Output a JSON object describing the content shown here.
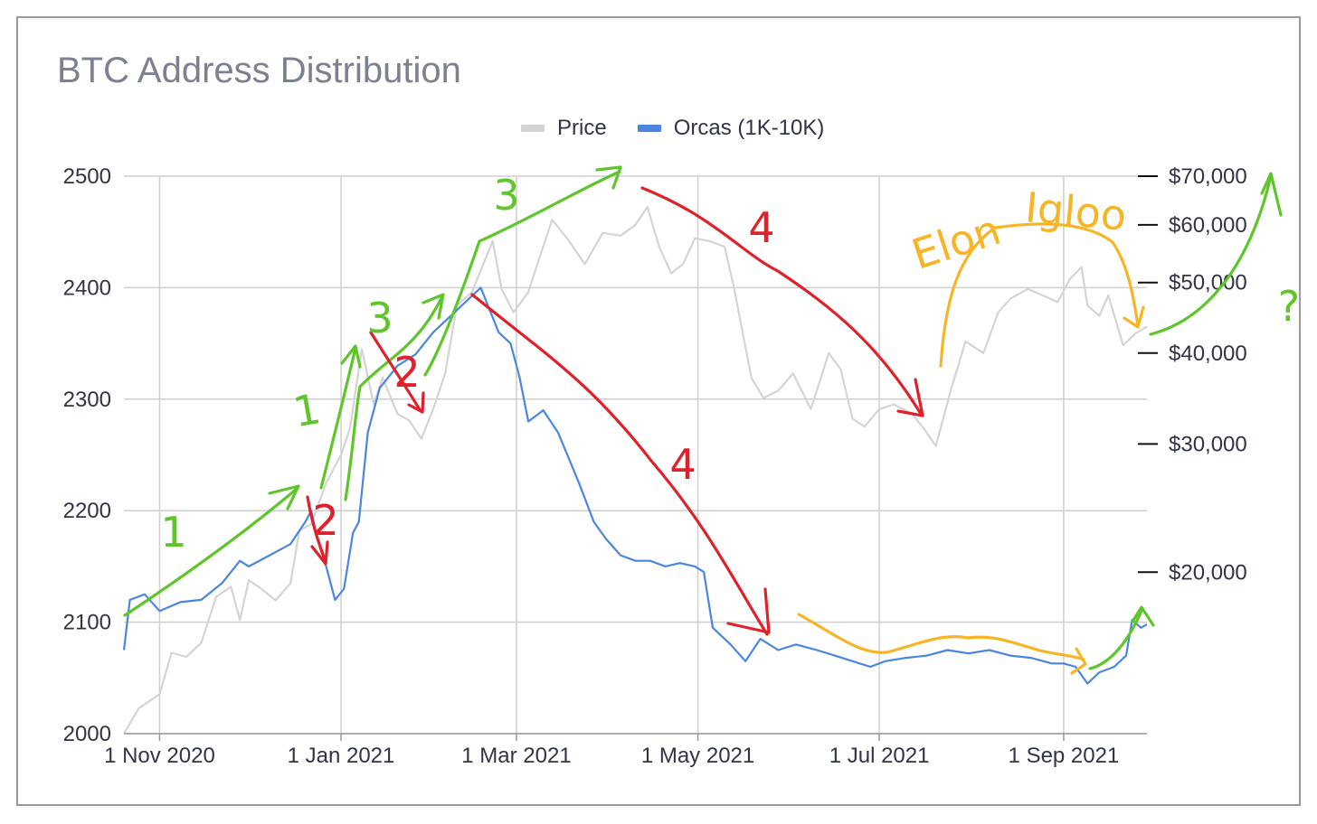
{
  "chart_data": {
    "type": "line",
    "title": "BTC Address Distribution",
    "legend": {
      "placement": "top-center",
      "entries": [
        "Price",
        "Orcas (1K-10K)"
      ]
    },
    "colors": {
      "price": "#d4d4d4",
      "orcas": "#4a86e0",
      "green": "#5ec52a",
      "red": "#e0202a",
      "yellow": "#f7b525"
    },
    "x_axis": {
      "type": "date",
      "range": [
        "2020-10-20",
        "2021-09-29"
      ],
      "tick_labels": [
        "1 Nov 2020",
        "1 Jan 2021",
        "1 Mar 2021",
        "1 May 2021",
        "1 Jul 2021",
        "1 Sep 2021"
      ],
      "tick_dates": [
        "2020-11-01",
        "2021-01-01",
        "2021-03-01",
        "2021-05-01",
        "2021-07-01",
        "2021-09-01"
      ]
    },
    "y_left": {
      "range": [
        2000,
        2500
      ],
      "tick_labels": [
        "2000",
        "2100",
        "2200",
        "2300",
        "2400",
        "2500"
      ],
      "tick_values": [
        2000,
        2100,
        2200,
        2300,
        2400,
        2500
      ]
    },
    "y_right": {
      "scale": "log",
      "range": [
        12000,
        70000
      ],
      "tick_labels": [
        "$70,000",
        "$60,000",
        "$50,000",
        "$40,000",
        "$30,000",
        "$20,000"
      ],
      "tick_values": [
        70000,
        60000,
        50000,
        40000,
        30000,
        20000
      ]
    },
    "grid": true,
    "series": [
      {
        "name": "Price",
        "axis": "right",
        "points": [
          [
            "2020-10-20",
            12000
          ],
          [
            "2020-10-25",
            13000
          ],
          [
            "2020-11-01",
            13600
          ],
          [
            "2020-11-05",
            15500
          ],
          [
            "2020-11-10",
            15300
          ],
          [
            "2020-11-15",
            16000
          ],
          [
            "2020-11-20",
            18500
          ],
          [
            "2020-11-25",
            19100
          ],
          [
            "2020-11-28",
            17200
          ],
          [
            "2020-12-01",
            19500
          ],
          [
            "2020-12-05",
            19000
          ],
          [
            "2020-12-10",
            18300
          ],
          [
            "2020-12-15",
            19300
          ],
          [
            "2020-12-18",
            22800
          ],
          [
            "2020-12-22",
            23300
          ],
          [
            "2020-12-27",
            26500
          ],
          [
            "2021-01-01",
            29000
          ],
          [
            "2021-01-04",
            31500
          ],
          [
            "2021-01-08",
            40500
          ],
          [
            "2021-01-12",
            34000
          ],
          [
            "2021-01-15",
            37000
          ],
          [
            "2021-01-20",
            33000
          ],
          [
            "2021-01-24",
            32300
          ],
          [
            "2021-01-28",
            30500
          ],
          [
            "2021-02-01",
            33500
          ],
          [
            "2021-02-05",
            37500
          ],
          [
            "2021-02-09",
            46500
          ],
          [
            "2021-02-14",
            48500
          ],
          [
            "2021-02-21",
            57000
          ],
          [
            "2021-02-24",
            49000
          ],
          [
            "2021-02-28",
            45500
          ],
          [
            "2021-03-05",
            48500
          ],
          [
            "2021-03-09",
            54500
          ],
          [
            "2021-03-13",
            61000
          ],
          [
            "2021-03-18",
            57500
          ],
          [
            "2021-03-24",
            53000
          ],
          [
            "2021-03-30",
            58500
          ],
          [
            "2021-04-05",
            58000
          ],
          [
            "2021-04-10",
            60000
          ],
          [
            "2021-04-14",
            63500
          ],
          [
            "2021-04-18",
            56000
          ],
          [
            "2021-04-22",
            51500
          ],
          [
            "2021-04-26",
            53000
          ],
          [
            "2021-04-30",
            57500
          ],
          [
            "2021-05-05",
            57000
          ],
          [
            "2021-05-10",
            56000
          ],
          [
            "2021-05-13",
            49500
          ],
          [
            "2021-05-19",
            37000
          ],
          [
            "2021-05-23",
            34700
          ],
          [
            "2021-05-28",
            35500
          ],
          [
            "2021-06-02",
            37500
          ],
          [
            "2021-06-08",
            33500
          ],
          [
            "2021-06-14",
            40000
          ],
          [
            "2021-06-18",
            38000
          ],
          [
            "2021-06-22",
            32500
          ],
          [
            "2021-06-26",
            31700
          ],
          [
            "2021-07-01",
            33500
          ],
          [
            "2021-07-06",
            34000
          ],
          [
            "2021-07-12",
            33000
          ],
          [
            "2021-07-16",
            31500
          ],
          [
            "2021-07-20",
            29800
          ],
          [
            "2021-07-25",
            35500
          ],
          [
            "2021-07-30",
            41500
          ],
          [
            "2021-08-05",
            40000
          ],
          [
            "2021-08-10",
            45500
          ],
          [
            "2021-08-14",
            47500
          ],
          [
            "2021-08-20",
            49000
          ],
          [
            "2021-08-25",
            48000
          ],
          [
            "2021-08-30",
            47000
          ],
          [
            "2021-09-03",
            50500
          ],
          [
            "2021-09-07",
            52500
          ],
          [
            "2021-09-09",
            46500
          ],
          [
            "2021-09-13",
            45000
          ],
          [
            "2021-09-16",
            48000
          ],
          [
            "2021-09-21",
            41000
          ],
          [
            "2021-09-25",
            42500
          ],
          [
            "2021-09-29",
            43500
          ]
        ]
      },
      {
        "name": "Orcas (1K-10K)",
        "axis": "left",
        "points": [
          [
            "2020-10-20",
            2075
          ],
          [
            "2020-10-22",
            2120
          ],
          [
            "2020-10-27",
            2125
          ],
          [
            "2020-11-01",
            2110
          ],
          [
            "2020-11-08",
            2118
          ],
          [
            "2020-11-15",
            2120
          ],
          [
            "2020-11-22",
            2135
          ],
          [
            "2020-11-28",
            2155
          ],
          [
            "2020-12-01",
            2150
          ],
          [
            "2020-12-08",
            2160
          ],
          [
            "2020-12-15",
            2170
          ],
          [
            "2020-12-20",
            2190
          ],
          [
            "2020-12-22",
            2200
          ],
          [
            "2020-12-24",
            2175
          ],
          [
            "2020-12-27",
            2150
          ],
          [
            "2020-12-30",
            2120
          ],
          [
            "2021-01-02",
            2130
          ],
          [
            "2021-01-05",
            2180
          ],
          [
            "2021-01-07",
            2190
          ],
          [
            "2021-01-10",
            2270
          ],
          [
            "2021-01-14",
            2310
          ],
          [
            "2021-01-20",
            2330
          ],
          [
            "2021-01-26",
            2340
          ],
          [
            "2021-02-01",
            2360
          ],
          [
            "2021-02-07",
            2375
          ],
          [
            "2021-02-13",
            2390
          ],
          [
            "2021-02-17",
            2400
          ],
          [
            "2021-02-20",
            2380
          ],
          [
            "2021-02-23",
            2360
          ],
          [
            "2021-02-27",
            2350
          ],
          [
            "2021-03-02",
            2320
          ],
          [
            "2021-03-05",
            2280
          ],
          [
            "2021-03-10",
            2290
          ],
          [
            "2021-03-15",
            2270
          ],
          [
            "2021-03-22",
            2225
          ],
          [
            "2021-03-27",
            2190
          ],
          [
            "2021-03-31",
            2175
          ],
          [
            "2021-04-05",
            2160
          ],
          [
            "2021-04-10",
            2155
          ],
          [
            "2021-04-15",
            2155
          ],
          [
            "2021-04-20",
            2150
          ],
          [
            "2021-04-25",
            2153
          ],
          [
            "2021-04-30",
            2150
          ],
          [
            "2021-05-03",
            2145
          ],
          [
            "2021-05-06",
            2095
          ],
          [
            "2021-05-12",
            2080
          ],
          [
            "2021-05-17",
            2065
          ],
          [
            "2021-05-22",
            2085
          ],
          [
            "2021-05-28",
            2075
          ],
          [
            "2021-06-03",
            2080
          ],
          [
            "2021-06-10",
            2075
          ],
          [
            "2021-06-16",
            2070
          ],
          [
            "2021-06-22",
            2065
          ],
          [
            "2021-06-28",
            2060
          ],
          [
            "2021-07-03",
            2065
          ],
          [
            "2021-07-10",
            2068
          ],
          [
            "2021-07-17",
            2070
          ],
          [
            "2021-07-24",
            2075
          ],
          [
            "2021-07-31",
            2072
          ],
          [
            "2021-08-07",
            2075
          ],
          [
            "2021-08-14",
            2070
          ],
          [
            "2021-08-21",
            2068
          ],
          [
            "2021-08-28",
            2063
          ],
          [
            "2021-09-01",
            2063
          ],
          [
            "2021-09-05",
            2060
          ],
          [
            "2021-09-09",
            2045
          ],
          [
            "2021-09-13",
            2055
          ],
          [
            "2021-09-18",
            2060
          ],
          [
            "2021-09-22",
            2070
          ],
          [
            "2021-09-24",
            2102
          ],
          [
            "2021-09-27",
            2095
          ],
          [
            "2021-09-29",
            2098
          ]
        ]
      }
    ],
    "annotations": [
      {
        "text": "1",
        "color": "green"
      },
      {
        "text": "1",
        "color": "green"
      },
      {
        "text": "2",
        "color": "red"
      },
      {
        "text": "2",
        "color": "red"
      },
      {
        "text": "3",
        "color": "green"
      },
      {
        "text": "3",
        "color": "green"
      },
      {
        "text": "4",
        "color": "red"
      },
      {
        "text": "4",
        "color": "red"
      },
      {
        "text": "Elon",
        "color": "yellow"
      },
      {
        "text": "Igloo",
        "color": "yellow"
      },
      {
        "text": "?",
        "color": "green"
      }
    ]
  }
}
